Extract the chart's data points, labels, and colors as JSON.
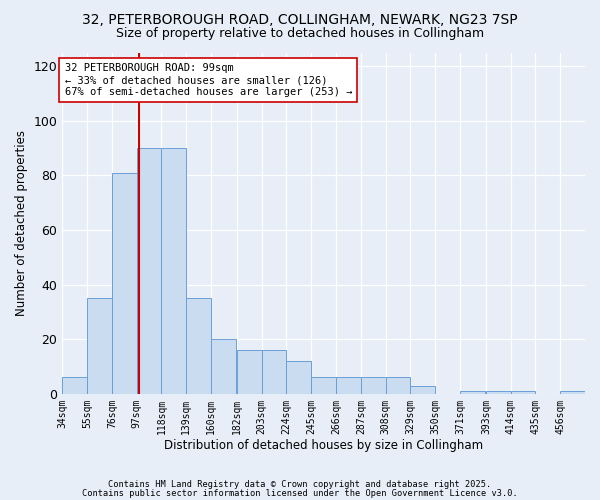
{
  "title_line1": "32, PETERBOROUGH ROAD, COLLINGHAM, NEWARK, NG23 7SP",
  "title_line2": "Size of property relative to detached houses in Collingham",
  "xlabel": "Distribution of detached houses by size in Collingham",
  "ylabel": "Number of detached properties",
  "bins": [
    34,
    55,
    76,
    97,
    118,
    139,
    160,
    182,
    203,
    224,
    245,
    266,
    287,
    308,
    329,
    350,
    371,
    393,
    414,
    435,
    456
  ],
  "counts": [
    6,
    35,
    81,
    90,
    90,
    35,
    20,
    16,
    16,
    12,
    6,
    6,
    6,
    6,
    3,
    0,
    1,
    1,
    1,
    0,
    1
  ],
  "bar_color": "#c9dcf0",
  "bar_edge_color": "#6a9fd8",
  "bg_color": "#e8eef8",
  "grid_color": "#ffffff",
  "vline_x": 99,
  "vline_color": "#cc0000",
  "annotation_text": "32 PETERBOROUGH ROAD: 99sqm\n← 33% of detached houses are smaller (126)\n67% of semi-detached houses are larger (253) →",
  "annotation_box_color": "#ffffff",
  "annotation_box_edge": "#cc0000",
  "footnote1": "Contains HM Land Registry data © Crown copyright and database right 2025.",
  "footnote2": "Contains public sector information licensed under the Open Government Licence v3.0.",
  "ylim": [
    0,
    125
  ],
  "yticks": [
    0,
    20,
    40,
    60,
    80,
    100,
    120
  ]
}
